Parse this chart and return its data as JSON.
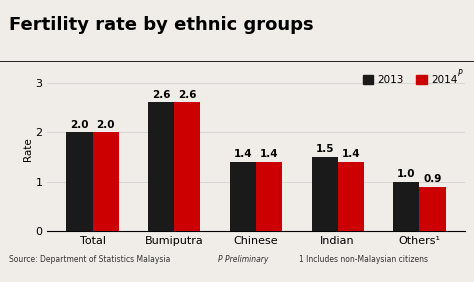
{
  "title": "Fertility rate by ethnic groups",
  "ylabel": "Rate",
  "categories": [
    "Total",
    "Bumiputra",
    "Chinese",
    "Indian",
    "Others¹"
  ],
  "values_2013": [
    2.0,
    2.6,
    1.4,
    1.5,
    1.0
  ],
  "values_2014": [
    2.0,
    2.6,
    1.4,
    1.4,
    0.9
  ],
  "color_2013": "#1a1a1a",
  "color_2014": "#cc0000",
  "ylim": [
    0,
    3.3
  ],
  "yticks": [
    0,
    1,
    2,
    3
  ],
  "legend_2013": "2013",
  "legend_2014": "2014",
  "footer_left": "Source: Department of Statistics Malaysia",
  "footer_mid": "P Preliminary",
  "footer_right": "1 Includes non-Malaysian citizens",
  "bar_width": 0.32,
  "title_fontsize": 13,
  "label_fontsize": 7.5,
  "tick_fontsize": 8,
  "background_color": "#f0ede8"
}
